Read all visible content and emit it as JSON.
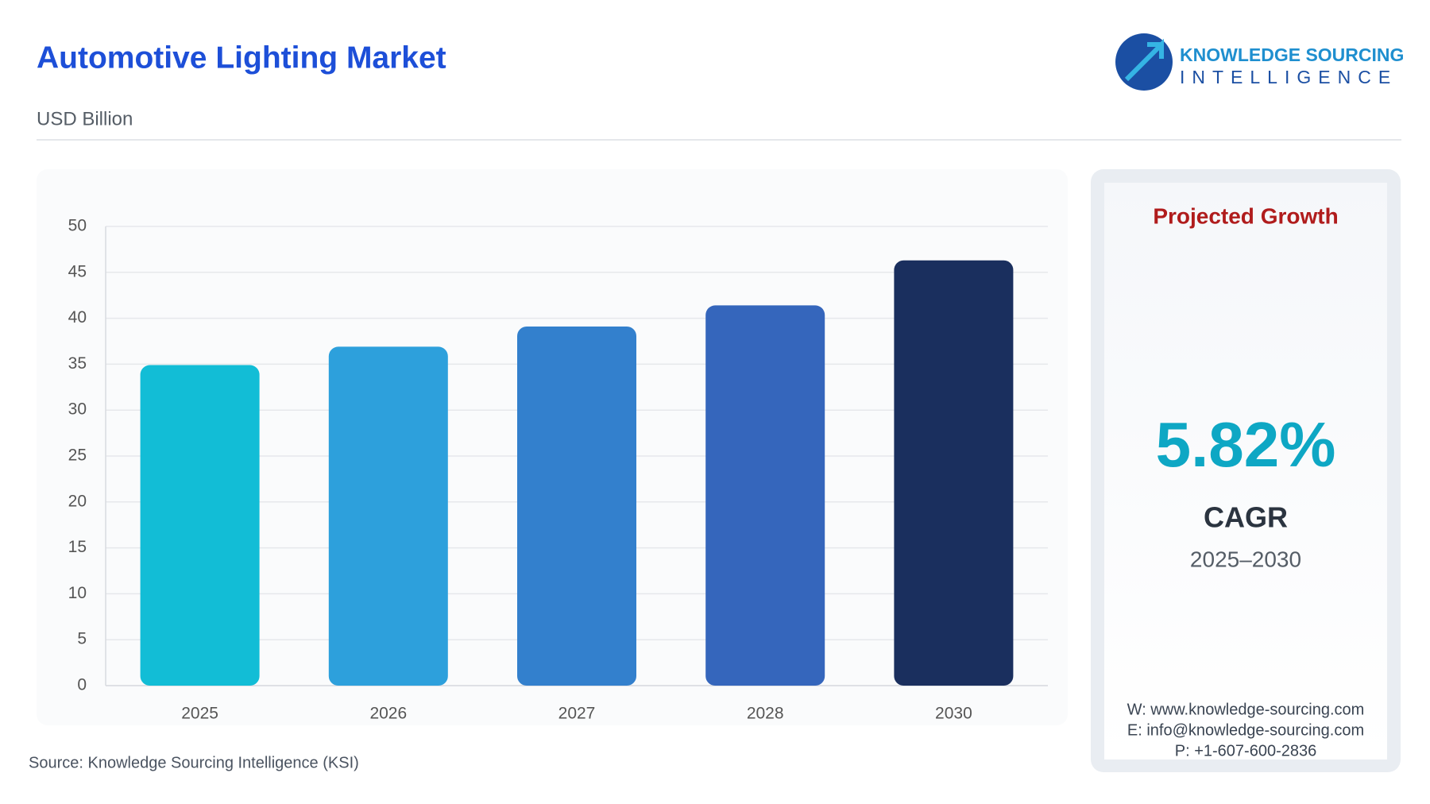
{
  "header": {
    "title": "Automotive Lighting Market",
    "subtitle": "USD Billion",
    "logo_line1": "KNOWLEDGE SOURCING",
    "logo_line2": "INTELLIGENCE"
  },
  "chart_data": {
    "type": "bar",
    "categories": [
      "2025",
      "2026",
      "2027",
      "2028",
      "2030"
    ],
    "values": [
      34.9,
      36.9,
      39.1,
      41.4,
      46.3
    ],
    "colors": [
      "#12bdd6",
      "#2da0dc",
      "#3380cd",
      "#3566bc",
      "#1a2f5e"
    ],
    "ylim": [
      0,
      50
    ],
    "yticks": [
      0,
      5,
      10,
      15,
      20,
      25,
      30,
      35,
      40,
      45,
      50
    ],
    "grid": true
  },
  "panel": {
    "heading": "Projected Growth",
    "cagr_value": "5.82%",
    "cagr_label": "CAGR",
    "period": "2025–2030",
    "website": "W: www.knowledge-sourcing.com",
    "email": "E: info@knowledge-sourcing.com",
    "phone": "P: +1-607-600-2836"
  },
  "footer": {
    "source": "Source: Knowledge Sourcing Intelligence (KSI)"
  }
}
